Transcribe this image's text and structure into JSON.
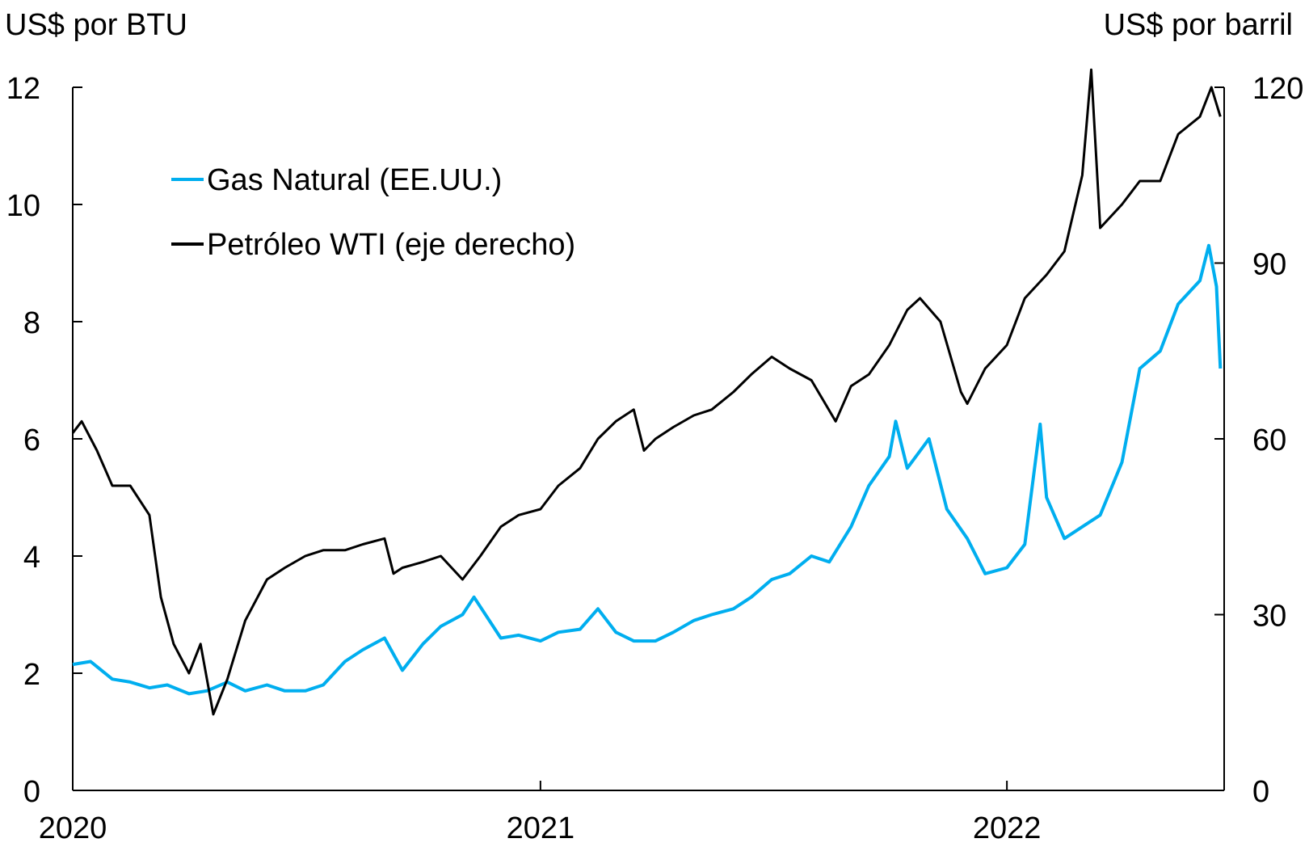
{
  "chart_data": {
    "type": "line",
    "title": "",
    "ylabel_left": "US$ por BTU",
    "ylabel_right": "US$ por barril",
    "x_range": [
      "2020-01-01",
      "2022-06-20"
    ],
    "x_ticks": [
      {
        "date": "2020-01-01",
        "label": "2020"
      },
      {
        "date": "2021-01-01",
        "label": "2021"
      },
      {
        "date": "2022-01-01",
        "label": "2022"
      }
    ],
    "ylim_left": [
      0,
      12
    ],
    "yticks_left": [
      0,
      2,
      4,
      6,
      8,
      10,
      12
    ],
    "ylim_right": [
      0,
      120
    ],
    "yticks_right": [
      0,
      30,
      60,
      90,
      120
    ],
    "grid": false,
    "legend_position": "top-left",
    "colors": {
      "gas": "#00aeef",
      "wti": "#000000"
    },
    "series": [
      {
        "name": "Gas Natural (EE.UU.)",
        "axis": "left",
        "color": "#00aeef",
        "points": [
          [
            "2020-01-01",
            2.15
          ],
          [
            "2020-01-15",
            2.2
          ],
          [
            "2020-02-01",
            1.9
          ],
          [
            "2020-02-15",
            1.85
          ],
          [
            "2020-03-01",
            1.75
          ],
          [
            "2020-03-15",
            1.8
          ],
          [
            "2020-04-01",
            1.65
          ],
          [
            "2020-04-15",
            1.7
          ],
          [
            "2020-05-01",
            1.85
          ],
          [
            "2020-05-15",
            1.7
          ],
          [
            "2020-06-01",
            1.8
          ],
          [
            "2020-06-15",
            1.7
          ],
          [
            "2020-07-01",
            1.7
          ],
          [
            "2020-07-15",
            1.8
          ],
          [
            "2020-08-01",
            2.2
          ],
          [
            "2020-08-15",
            2.4
          ],
          [
            "2020-09-01",
            2.6
          ],
          [
            "2020-09-15",
            2.05
          ],
          [
            "2020-10-01",
            2.5
          ],
          [
            "2020-10-15",
            2.8
          ],
          [
            "2020-11-01",
            3.0
          ],
          [
            "2020-11-10",
            3.3
          ],
          [
            "2020-12-01",
            2.6
          ],
          [
            "2020-12-15",
            2.65
          ],
          [
            "2021-01-01",
            2.55
          ],
          [
            "2021-01-15",
            2.7
          ],
          [
            "2021-02-01",
            2.75
          ],
          [
            "2021-02-15",
            3.1
          ],
          [
            "2021-03-01",
            2.7
          ],
          [
            "2021-03-15",
            2.55
          ],
          [
            "2021-04-01",
            2.55
          ],
          [
            "2021-04-15",
            2.7
          ],
          [
            "2021-05-01",
            2.9
          ],
          [
            "2021-05-15",
            3.0
          ],
          [
            "2021-06-01",
            3.1
          ],
          [
            "2021-06-15",
            3.3
          ],
          [
            "2021-07-01",
            3.6
          ],
          [
            "2021-07-15",
            3.7
          ],
          [
            "2021-08-01",
            4.0
          ],
          [
            "2021-08-15",
            3.9
          ],
          [
            "2021-09-01",
            4.5
          ],
          [
            "2021-09-15",
            5.2
          ],
          [
            "2021-10-01",
            5.7
          ],
          [
            "2021-10-06",
            6.3
          ],
          [
            "2021-10-15",
            5.5
          ],
          [
            "2021-11-01",
            6.0
          ],
          [
            "2021-11-15",
            4.8
          ],
          [
            "2021-12-01",
            4.3
          ],
          [
            "2021-12-15",
            3.7
          ],
          [
            "2022-01-01",
            3.8
          ],
          [
            "2022-01-15",
            4.2
          ],
          [
            "2022-01-27",
            6.25
          ],
          [
            "2022-02-01",
            5.0
          ],
          [
            "2022-02-15",
            4.3
          ],
          [
            "2022-03-01",
            4.5
          ],
          [
            "2022-03-15",
            4.7
          ],
          [
            "2022-04-01",
            5.6
          ],
          [
            "2022-04-15",
            7.2
          ],
          [
            "2022-05-01",
            7.5
          ],
          [
            "2022-05-15",
            8.3
          ],
          [
            "2022-06-01",
            8.7
          ],
          [
            "2022-06-08",
            9.3
          ],
          [
            "2022-06-14",
            8.6
          ],
          [
            "2022-06-17",
            7.2
          ]
        ]
      },
      {
        "name": "Petróleo WTI (eje derecho)",
        "axis": "right",
        "color": "#000000",
        "points": [
          [
            "2020-01-01",
            61
          ],
          [
            "2020-01-08",
            63
          ],
          [
            "2020-01-20",
            58
          ],
          [
            "2020-02-01",
            52
          ],
          [
            "2020-02-15",
            52
          ],
          [
            "2020-03-01",
            47
          ],
          [
            "2020-03-10",
            33
          ],
          [
            "2020-03-20",
            25
          ],
          [
            "2020-04-01",
            20
          ],
          [
            "2020-04-10",
            25
          ],
          [
            "2020-04-20",
            13
          ],
          [
            "2020-05-01",
            19
          ],
          [
            "2020-05-15",
            29
          ],
          [
            "2020-06-01",
            36
          ],
          [
            "2020-06-15",
            38
          ],
          [
            "2020-07-01",
            40
          ],
          [
            "2020-07-15",
            41
          ],
          [
            "2020-08-01",
            41
          ],
          [
            "2020-08-15",
            42
          ],
          [
            "2020-09-01",
            43
          ],
          [
            "2020-09-08",
            37
          ],
          [
            "2020-09-15",
            38
          ],
          [
            "2020-10-01",
            39
          ],
          [
            "2020-10-15",
            40
          ],
          [
            "2020-11-01",
            36
          ],
          [
            "2020-11-15",
            40
          ],
          [
            "2020-12-01",
            45
          ],
          [
            "2020-12-15",
            47
          ],
          [
            "2021-01-01",
            48
          ],
          [
            "2021-01-15",
            52
          ],
          [
            "2021-02-01",
            55
          ],
          [
            "2021-02-15",
            60
          ],
          [
            "2021-03-01",
            63
          ],
          [
            "2021-03-15",
            65
          ],
          [
            "2021-03-23",
            58
          ],
          [
            "2021-04-01",
            60
          ],
          [
            "2021-04-15",
            62
          ],
          [
            "2021-05-01",
            64
          ],
          [
            "2021-05-15",
            65
          ],
          [
            "2021-06-01",
            68
          ],
          [
            "2021-06-15",
            71
          ],
          [
            "2021-07-01",
            74
          ],
          [
            "2021-07-15",
            72
          ],
          [
            "2021-08-01",
            70
          ],
          [
            "2021-08-20",
            63
          ],
          [
            "2021-09-01",
            69
          ],
          [
            "2021-09-15",
            71
          ],
          [
            "2021-10-01",
            76
          ],
          [
            "2021-10-15",
            82
          ],
          [
            "2021-10-25",
            84
          ],
          [
            "2021-11-10",
            80
          ],
          [
            "2021-11-26",
            68
          ],
          [
            "2021-12-01",
            66
          ],
          [
            "2021-12-15",
            72
          ],
          [
            "2022-01-01",
            76
          ],
          [
            "2022-01-15",
            84
          ],
          [
            "2022-02-01",
            88
          ],
          [
            "2022-02-15",
            92
          ],
          [
            "2022-03-01",
            105
          ],
          [
            "2022-03-08",
            123
          ],
          [
            "2022-03-15",
            96
          ],
          [
            "2022-04-01",
            100
          ],
          [
            "2022-04-15",
            104
          ],
          [
            "2022-05-01",
            104
          ],
          [
            "2022-05-15",
            112
          ],
          [
            "2022-06-01",
            115
          ],
          [
            "2022-06-10",
            120
          ],
          [
            "2022-06-17",
            115
          ]
        ]
      }
    ]
  }
}
